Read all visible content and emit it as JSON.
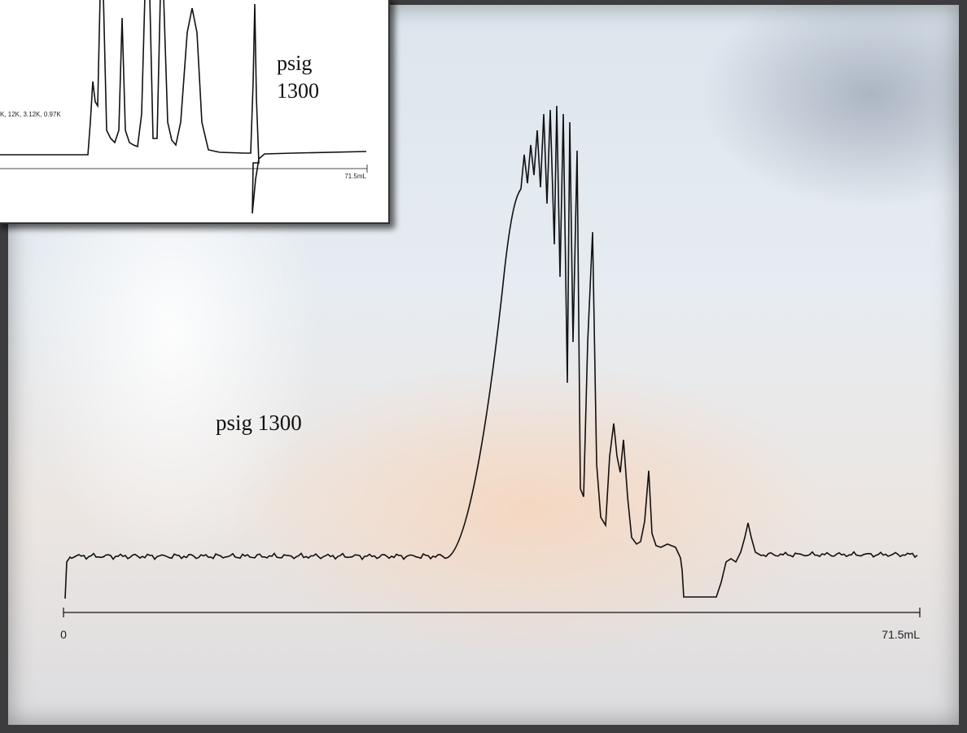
{
  "main_plot": {
    "label": "psig 1300",
    "axis_start": "0",
    "axis_end": "71.5mL"
  },
  "inset": {
    "label_lines": [
      "psig",
      "1300"
    ],
    "legend": "K, 12K, 3.12K, 0.97K",
    "axis_end": "71.5mL"
  }
}
